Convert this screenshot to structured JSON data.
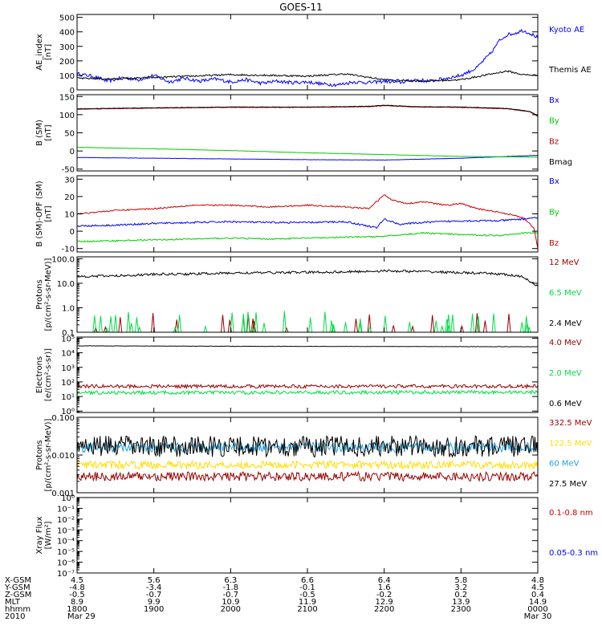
{
  "chart_data": {
    "title": "GOES-11",
    "type": "line",
    "panels": [
      {
        "id": "ae",
        "ylabel": "AE_index\n[nT]",
        "scale": "linear",
        "ylim": [
          0,
          520
        ],
        "ticks": [
          0,
          100,
          200,
          300,
          400,
          500
        ],
        "tick_labels": [
          "0",
          "100",
          "200",
          "300",
          "400",
          "500"
        ],
        "series": [
          {
            "name": "Kyoto AE",
            "color": "#0000ff",
            "legend_color": "#0000ff",
            "kind": "line",
            "x": [
              18.0,
              18.2,
              18.4,
              18.6,
              18.8,
              19.0,
              19.2,
              19.4,
              19.6,
              19.8,
              20.0,
              20.2,
              20.4,
              20.6,
              20.8,
              21.0,
              21.2,
              21.4,
              21.6,
              21.8,
              22.0,
              22.2,
              22.4,
              22.6,
              22.8,
              23.0,
              23.2,
              23.4,
              23.5,
              23.6,
              23.7,
              23.8,
              23.9,
              24.0
            ],
            "y": [
              110,
              95,
              60,
              85,
              70,
              100,
              55,
              80,
              60,
              75,
              55,
              70,
              45,
              60,
              50,
              55,
              40,
              35,
              55,
              50,
              60,
              50,
              70,
              60,
              80,
              100,
              150,
              260,
              340,
              380,
              390,
              410,
              390,
              360
            ],
            "noise": 12
          },
          {
            "name": "Themis AE",
            "color": "#000000",
            "legend_color": "#000000",
            "kind": "line",
            "x": [
              18.0,
              18.5,
              19.0,
              19.5,
              20.0,
              20.5,
              21.0,
              21.5,
              22.0,
              22.5,
              23.0,
              23.3,
              23.6,
              23.8,
              24.0
            ],
            "y": [
              80,
              75,
              85,
              95,
              105,
              100,
              95,
              110,
              70,
              60,
              70,
              100,
              130,
              105,
              100
            ],
            "noise": 6
          }
        ]
      },
      {
        "id": "b",
        "ylabel": "B (SM)\n[nT]",
        "scale": "linear",
        "ylim": [
          -55,
          155
        ],
        "ticks": [
          -50,
          0,
          50,
          100,
          150
        ],
        "tick_labels": [
          "-50",
          "0",
          "50",
          "100",
          "150"
        ],
        "series": [
          {
            "name": "Bx",
            "color": "#0000ff",
            "legend_color": "#0000ff",
            "kind": "line",
            "x": [
              18.0,
              19.0,
              20.0,
              21.0,
              22.0,
              23.0,
              24.0
            ],
            "y": [
              -18,
              -20,
              -22,
              -24,
              -25,
              -20,
              -12
            ],
            "noise": 0.3
          },
          {
            "name": "By",
            "color": "#00cc00",
            "legend_color": "#00cc00",
            "kind": "line",
            "x": [
              18.0,
              19.0,
              20.0,
              21.0,
              22.0,
              23.0,
              24.0
            ],
            "y": [
              10,
              6,
              1,
              -5,
              -10,
              -15,
              -17
            ],
            "noise": 0.3
          },
          {
            "name": "Bz",
            "color": "#cc0000",
            "legend_color": "#cc0000",
            "kind": "line",
            "x": [
              18.0,
              19.0,
              20.0,
              21.0,
              21.8,
              22.0,
              22.4,
              23.0,
              23.6,
              23.9,
              24.0
            ],
            "y": [
              115,
              118,
              120,
              120,
              122,
              125,
              121,
              120,
              116,
              108,
              95
            ],
            "noise": 0.6
          },
          {
            "name": "Bmag",
            "color": "#000000",
            "legend_color": "#000000",
            "kind": "line",
            "x": [
              18.0,
              19.0,
              20.0,
              21.0,
              21.8,
              22.0,
              22.4,
              23.0,
              23.6,
              23.9,
              24.0
            ],
            "y": [
              116,
              119,
              121,
              121,
              123,
              126,
              122,
              121,
              117,
              109,
              97
            ],
            "noise": 0.6
          }
        ]
      },
      {
        "id": "bdiff",
        "ylabel": "B (SM)-OPF (SM)\n[nT]",
        "scale": "linear",
        "ylim": [
          -12,
          32
        ],
        "ticks": [
          -10,
          0,
          10,
          20,
          30
        ],
        "tick_labels": [
          "-10",
          "0",
          "10",
          "20",
          "30"
        ],
        "series": [
          {
            "name": "Bx",
            "color": "#0000ff",
            "legend_color": "#0000ff",
            "kind": "line",
            "x": [
              18.0,
              18.5,
              19.0,
              19.5,
              20.0,
              20.5,
              21.0,
              21.5,
              21.9,
              22.0,
              22.2,
              22.5,
              23.0,
              23.5,
              23.8,
              24.0
            ],
            "y": [
              3,
              3.5,
              4.5,
              5,
              5.5,
              5,
              5,
              5.5,
              2,
              7,
              4,
              5,
              6,
              6,
              7,
              8
            ],
            "noise": 0.5
          },
          {
            "name": "By",
            "color": "#00cc00",
            "legend_color": "#00cc00",
            "kind": "line",
            "x": [
              18.0,
              18.5,
              19.0,
              19.5,
              20.0,
              20.5,
              21.0,
              21.5,
              22.0,
              22.5,
              23.0,
              23.5,
              23.8,
              24.0
            ],
            "y": [
              -6,
              -5.5,
              -5,
              -4.5,
              -4,
              -4.5,
              -4,
              -3.5,
              -3,
              -1,
              -2,
              -2.5,
              -1,
              -1
            ],
            "noise": 0.4
          },
          {
            "name": "Bz",
            "color": "#cc0000",
            "legend_color": "#cc0000",
            "kind": "line",
            "x": [
              18.0,
              18.5,
              19.0,
              19.5,
              20.0,
              20.5,
              21.0,
              21.5,
              21.8,
              22.0,
              22.1,
              22.3,
              22.5,
              22.8,
              23.0,
              23.2,
              23.5,
              23.8,
              23.95,
              24.0
            ],
            "y": [
              10,
              12,
              13,
              15,
              15,
              14,
              15,
              14,
              13,
              21,
              18,
              16,
              17,
              15,
              16,
              13,
              11,
              8,
              2,
              -10
            ],
            "noise": 0.4
          }
        ]
      },
      {
        "id": "protons_hi",
        "ylabel": "Protons\n[p/(cm²-s-sr-MeV)]",
        "scale": "log",
        "ylim": [
          0.1,
          120
        ],
        "ticks": [
          0.1,
          1.0,
          10.0,
          100.0
        ],
        "tick_labels": [
          "0.1",
          "1.0",
          "10.0",
          "100.0"
        ],
        "series": [
          {
            "name": "12 MeV",
            "color": "#990000",
            "legend_color": "#990000",
            "kind": "spikes",
            "base": 0.1,
            "count": 20,
            "peak": 0.45
          },
          {
            "name": "6.5 MeV",
            "color": "#00dd44",
            "legend_color": "#00dd44",
            "kind": "spikes",
            "base": 0.1,
            "count": 44,
            "peak": 0.55
          },
          {
            "name": "2.4 MeV",
            "color": "#000000",
            "legend_color": "#000000",
            "kind": "line",
            "x": [
              18.0,
              18.5,
              19.0,
              19.5,
              20.0,
              20.5,
              21.0,
              21.5,
              22.0,
              22.5,
              23.0,
              23.5,
              23.8,
              23.9,
              24.0
            ],
            "y": [
              19,
              20,
              23,
              24,
              26,
              27,
              28,
              29,
              32,
              30,
              27,
              24,
              18,
              12,
              7
            ],
            "noise": 0.05,
            "lognoise": true
          }
        ]
      },
      {
        "id": "electrons",
        "ylabel": "Electrons\n[e/(cm²-s-sr)]",
        "scale": "log",
        "ylim": [
          0.8,
          120000.0
        ],
        "ticks": [
          1,
          10,
          100,
          1000,
          10000,
          100000
        ],
        "tick_labels": [
          "10⁰",
          "10¹",
          "10²",
          "10³",
          "10⁴",
          "10⁵"
        ],
        "series": [
          {
            "name": "4.0 MeV",
            "color": "#990000",
            "legend_color": "#990000",
            "kind": "line",
            "x": [
              18.0,
              24.0
            ],
            "y": [
              50,
              50
            ],
            "noise": 0.12,
            "lognoise": true
          },
          {
            "name": "2.0 MeV",
            "color": "#00dd44",
            "legend_color": "#00dd44",
            "kind": "line",
            "x": [
              18.0,
              24.0
            ],
            "y": [
              18,
              20
            ],
            "noise": 0.12,
            "lognoise": true
          },
          {
            "name": "0.6 MeV",
            "color": "#000000",
            "legend_color": "#000000",
            "kind": "line",
            "x": [
              18.0,
              20.0,
              22.0,
              24.0
            ],
            "y": [
              30000,
              28000,
              27000,
              26000
            ],
            "noise": 0.01,
            "lognoise": true
          }
        ]
      },
      {
        "id": "protons_lo",
        "ylabel": "Protons\n[p/(cm²-s-sr-MeV)]",
        "scale": "log",
        "ylim": [
          0.001,
          0.1
        ],
        "ticks": [
          0.001,
          0.01,
          0.1
        ],
        "tick_labels": [
          "0.001",
          "0.010",
          "0.100"
        ],
        "series": [
          {
            "name": "332.5 MeV",
            "color": "#990000",
            "legend_color": "#990000",
            "kind": "line",
            "x": [
              18.0,
              24.0
            ],
            "y": [
              0.0027,
              0.0027
            ],
            "noise": 0.12,
            "lognoise": true
          },
          {
            "name": "122.5 MeV",
            "color": "#ffdd00",
            "legend_color": "#ffdd00",
            "kind": "line",
            "x": [
              18.0,
              24.0
            ],
            "y": [
              0.0055,
              0.0055
            ],
            "noise": 0.1,
            "lognoise": true
          },
          {
            "name": "60 MeV",
            "color": "#1ea4e0",
            "legend_color": "#1ea4e0",
            "kind": "line",
            "x": [
              18.0,
              24.0
            ],
            "y": [
              0.016,
              0.016
            ],
            "noise": 0.13,
            "lognoise": true
          },
          {
            "name": "27.5 MeV",
            "color": "#000000",
            "legend_color": "#000000",
            "kind": "line",
            "x": [
              18.0,
              24.0
            ],
            "y": [
              0.017,
              0.017
            ],
            "noise": 0.28,
            "lognoise": true
          }
        ]
      },
      {
        "id": "xray",
        "ylabel": "Xray Flux\n[W/m²]",
        "scale": "log",
        "ylim": [
          1e-07,
          1
        ],
        "ticks": [
          1e-07,
          1e-06,
          1e-05,
          0.0001,
          0.001,
          0.01,
          0.1,
          1
        ],
        "tick_labels": [
          "10⁻⁷",
          "10⁻⁶",
          "10⁻⁵",
          "10⁻⁴",
          "10⁻³",
          "10⁻²",
          "10⁻¹",
          "10⁰"
        ],
        "series": [
          {
            "name": "0.1-0.8 nm",
            "color": "#cc0000",
            "legend_color": "#cc0000",
            "kind": "none"
          },
          {
            "name": "0.05-0.3 nm",
            "color": "#0000ff",
            "legend_color": "#0000ff",
            "kind": "none"
          }
        ]
      }
    ],
    "x_axis": {
      "range": [
        18.0,
        24.0
      ],
      "row_labels": [
        "X-GSM",
        "Y-GSM",
        "Z-GSM",
        "MLT",
        "hhmm",
        "2010"
      ],
      "ticks": [
        {
          "x": 18.0,
          "values": [
            "4.5",
            "-4.8",
            "-0.5",
            "8.9",
            "1800",
            "Mar 29"
          ]
        },
        {
          "x": 19.0,
          "values": [
            "5.6",
            "-3.4",
            "-0.7",
            "9.9",
            "1900",
            ""
          ]
        },
        {
          "x": 20.0,
          "values": [
            "6.3",
            "-1.8",
            "-0.7",
            "10.9",
            "2000",
            ""
          ]
        },
        {
          "x": 21.0,
          "values": [
            "6.6",
            "-0.1",
            "-0.5",
            "11.9",
            "2100",
            ""
          ]
        },
        {
          "x": 22.0,
          "values": [
            "6.4",
            "1.6",
            "-0.2",
            "12.9",
            "2200",
            ""
          ]
        },
        {
          "x": 23.0,
          "values": [
            "5.8",
            "3.2",
            "0.2",
            "13.9",
            "2300",
            ""
          ]
        },
        {
          "x": 24.0,
          "values": [
            "4.8",
            "4.5",
            "0.4",
            "14.9",
            "0000",
            "Mar 30"
          ]
        }
      ]
    }
  }
}
